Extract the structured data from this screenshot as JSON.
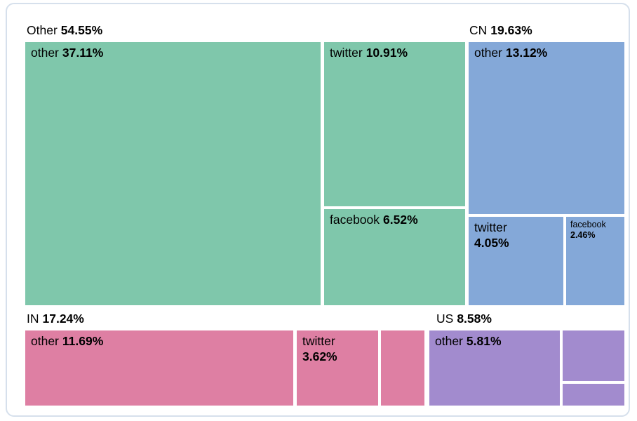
{
  "chart_data": {
    "type": "treemap",
    "title": "",
    "unit": "%",
    "legend": "none",
    "groups": [
      {
        "label": "Other",
        "value": "54.55%",
        "pct": 54.55,
        "color": "#7fc7ab",
        "children": [
          {
            "label": "other",
            "value": "37.11%",
            "pct": 37.11,
            "label_shown": true
          },
          {
            "label": "twitter",
            "value": "10.91%",
            "pct": 10.91,
            "label_shown": true
          },
          {
            "label": "facebook",
            "value": "6.52%",
            "pct": 6.52,
            "label_shown": true
          }
        ]
      },
      {
        "label": "CN",
        "value": "19.63%",
        "pct": 19.63,
        "color": "#84a8d8",
        "children": [
          {
            "label": "other",
            "value": "13.12%",
            "pct": 13.12,
            "label_shown": true
          },
          {
            "label": "twitter",
            "value": "4.05%",
            "pct": 4.05,
            "label_shown": true
          },
          {
            "label": "facebook",
            "value": "2.46%",
            "pct": 2.46,
            "label_shown": true
          }
        ]
      },
      {
        "label": "IN",
        "value": "17.24%",
        "pct": 17.24,
        "color": "#de7fa3",
        "children": [
          {
            "label": "other",
            "value": "11.69%",
            "pct": 11.69,
            "label_shown": true
          },
          {
            "label": "twitter",
            "value": "3.62%",
            "pct": 3.62,
            "label_shown": true
          },
          {
            "label": "",
            "value": "",
            "pct": 1.93,
            "label_shown": false
          }
        ]
      },
      {
        "label": "US",
        "value": "8.58%",
        "pct": 8.58,
        "color": "#a28bce",
        "children": [
          {
            "label": "other",
            "value": "5.81%",
            "pct": 5.81,
            "label_shown": true
          },
          {
            "label": "",
            "value": "",
            "pct": 1.93,
            "label_shown": false
          },
          {
            "label": "",
            "value": "",
            "pct": 0.84,
            "label_shown": false
          }
        ]
      }
    ],
    "style": {
      "background": "#ffffff",
      "card_border": "#d6e0ec",
      "text_color": "#000000",
      "gap_color": "#ffffff"
    }
  }
}
